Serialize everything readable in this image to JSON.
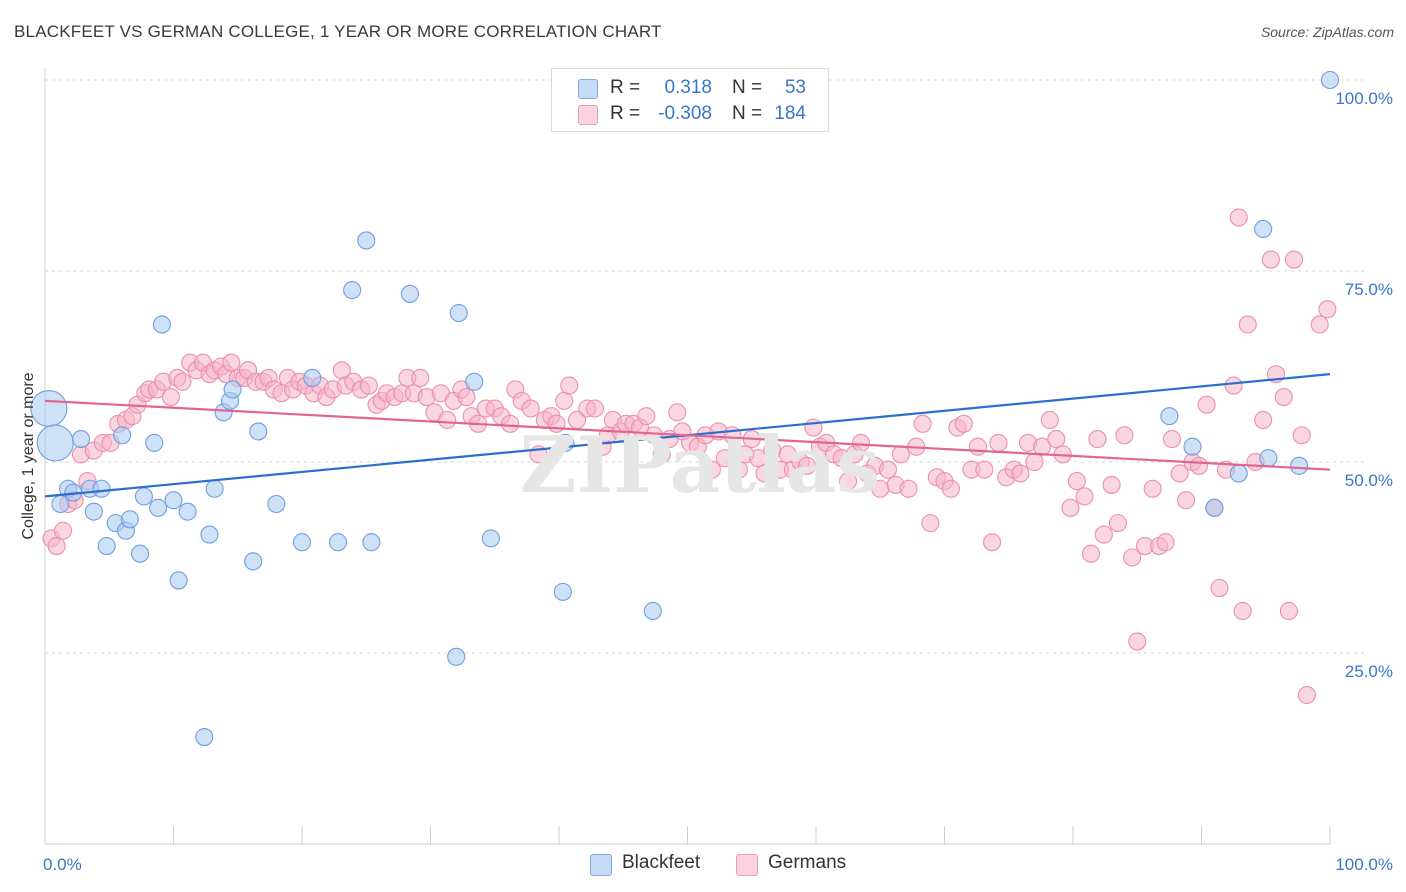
{
  "title": "BLACKFEET VS GERMAN COLLEGE, 1 YEAR OR MORE CORRELATION CHART",
  "source": "Source: ZipAtlas.com",
  "legend": {
    "rows": [
      {
        "r_label": "R =",
        "r_value": "0.318",
        "n_label": "N =",
        "n_value": "53",
        "color": "#a8c8f0"
      },
      {
        "r_label": "R =",
        "r_value": "-0.308",
        "n_label": "N =",
        "n_value": "184",
        "color": "#f5b4c8"
      }
    ]
  },
  "bottom_legend": [
    {
      "label": "Blackfeet",
      "color": "#a8c8f0"
    },
    {
      "label": "Germans",
      "color": "#f5b4c8"
    }
  ],
  "chart_data": {
    "type": "scatter",
    "title": "BLACKFEET VS GERMAN COLLEGE, 1 YEAR OR MORE CORRELATION CHART",
    "xlabel": "",
    "ylabel": "College, 1 year or more",
    "xlim": [
      0,
      100
    ],
    "ylim": [
      0,
      100
    ],
    "x_tick_labels": [
      "0.0%",
      "100.0%"
    ],
    "y_tick_labels": [
      {
        "label": "25.0%",
        "value": 25
      },
      {
        "label": "50.0%",
        "value": 50
      },
      {
        "label": "75.0%",
        "value": 75
      },
      {
        "label": "100.0%",
        "value": 100
      }
    ],
    "grid": "horizontal dashed",
    "series": [
      {
        "name": "Blackfeet",
        "color": "#a8c8f0",
        "stroke": "#6f9fdf",
        "trend": {
          "x": [
            0,
            100
          ],
          "y": [
            45.5,
            61.5
          ],
          "color": "#2a6fd0"
        },
        "points": [
          [
            0.3,
            57
          ],
          [
            0.8,
            52.5
          ],
          [
            1.2,
            44.5
          ],
          [
            1.8,
            46.5
          ],
          [
            2.2,
            46
          ],
          [
            2.8,
            53
          ],
          [
            3.5,
            46.5
          ],
          [
            3.8,
            43.5
          ],
          [
            4.4,
            46.5
          ],
          [
            4.8,
            39
          ],
          [
            5.5,
            42
          ],
          [
            6.0,
            53.5
          ],
          [
            6.3,
            41
          ],
          [
            6.6,
            42.5
          ],
          [
            7.4,
            38
          ],
          [
            7.7,
            45.5
          ],
          [
            8.5,
            52.5
          ],
          [
            8.8,
            44
          ],
          [
            9.1,
            68
          ],
          [
            10.0,
            45
          ],
          [
            10.4,
            34.5
          ],
          [
            11.1,
            43.5
          ],
          [
            12.4,
            14
          ],
          [
            12.8,
            40.5
          ],
          [
            13.2,
            46.5
          ],
          [
            13.9,
            56.5
          ],
          [
            14.4,
            58
          ],
          [
            14.6,
            59.5
          ],
          [
            16.2,
            37
          ],
          [
            16.6,
            54
          ],
          [
            18.0,
            44.5
          ],
          [
            20.0,
            39.5
          ],
          [
            20.8,
            61
          ],
          [
            22.8,
            39.5
          ],
          [
            23.9,
            72.5
          ],
          [
            25.0,
            79
          ],
          [
            25.4,
            39.5
          ],
          [
            28.4,
            72
          ],
          [
            32.0,
            24.5
          ],
          [
            32.2,
            69.5
          ],
          [
            33.4,
            60.5
          ],
          [
            34.7,
            40
          ],
          [
            40.3,
            33
          ],
          [
            40.5,
            52.5
          ],
          [
            47.3,
            30.5
          ],
          [
            87.5,
            56
          ],
          [
            89.3,
            52
          ],
          [
            91.0,
            44
          ],
          [
            92.9,
            48.5
          ],
          [
            94.8,
            80.5
          ],
          [
            95.2,
            50.5
          ],
          [
            97.6,
            49.5
          ],
          [
            100,
            100
          ]
        ]
      },
      {
        "name": "Germans",
        "color": "#f5b4c8",
        "stroke": "#ec8fae",
        "trend": {
          "x": [
            0,
            100
          ],
          "y": [
            58,
            49
          ],
          "color": "#e06591"
        },
        "points": [
          [
            0.5,
            40
          ],
          [
            0.9,
            39
          ],
          [
            1.4,
            41
          ],
          [
            1.8,
            44.5
          ],
          [
            2.3,
            45
          ],
          [
            2.8,
            51
          ],
          [
            3.3,
            47.5
          ],
          [
            3.8,
            51.5
          ],
          [
            4.5,
            52.5
          ],
          [
            5.1,
            52.5
          ],
          [
            5.7,
            55
          ],
          [
            6.3,
            55.5
          ],
          [
            6.8,
            56
          ],
          [
            7.2,
            57.5
          ],
          [
            7.8,
            59
          ],
          [
            8.1,
            59.5
          ],
          [
            8.7,
            59.5
          ],
          [
            9.2,
            60.5
          ],
          [
            9.8,
            58.5
          ],
          [
            10.3,
            61
          ],
          [
            10.7,
            60.5
          ],
          [
            11.3,
            63
          ],
          [
            11.8,
            62
          ],
          [
            12.3,
            63
          ],
          [
            12.8,
            61.5
          ],
          [
            13.2,
            62
          ],
          [
            13.7,
            62.5
          ],
          [
            14.1,
            61.5
          ],
          [
            14.5,
            63
          ],
          [
            15.0,
            61
          ],
          [
            15.5,
            61
          ],
          [
            15.8,
            62
          ],
          [
            16.4,
            60.5
          ],
          [
            17.0,
            60.5
          ],
          [
            17.4,
            61
          ],
          [
            17.8,
            59.5
          ],
          [
            18.4,
            59
          ],
          [
            18.9,
            61
          ],
          [
            19.3,
            59.5
          ],
          [
            19.8,
            60.5
          ],
          [
            20.3,
            60
          ],
          [
            20.9,
            59
          ],
          [
            21.4,
            60
          ],
          [
            21.9,
            58.5
          ],
          [
            22.4,
            59.5
          ],
          [
            23.1,
            62
          ],
          [
            23.4,
            60
          ],
          [
            24.0,
            60.5
          ],
          [
            24.6,
            59.5
          ],
          [
            25.2,
            60
          ],
          [
            25.8,
            57.5
          ],
          [
            26.2,
            58
          ],
          [
            26.6,
            59
          ],
          [
            27.2,
            58.5
          ],
          [
            27.8,
            59
          ],
          [
            28.2,
            61
          ],
          [
            28.7,
            59
          ],
          [
            29.2,
            61
          ],
          [
            29.7,
            58.5
          ],
          [
            30.3,
            56.5
          ],
          [
            30.8,
            59
          ],
          [
            31.3,
            55.5
          ],
          [
            31.8,
            58
          ],
          [
            32.4,
            59.5
          ],
          [
            32.8,
            58.5
          ],
          [
            33.2,
            56
          ],
          [
            33.7,
            55
          ],
          [
            34.3,
            57
          ],
          [
            35.0,
            57
          ],
          [
            35.5,
            56
          ],
          [
            36.2,
            55
          ],
          [
            36.6,
            59.5
          ],
          [
            37.1,
            58
          ],
          [
            37.8,
            57
          ],
          [
            38.4,
            51
          ],
          [
            38.9,
            55.5
          ],
          [
            39.4,
            56
          ],
          [
            39.8,
            55
          ],
          [
            40.4,
            58
          ],
          [
            40.8,
            60
          ],
          [
            41.4,
            55.5
          ],
          [
            42.2,
            57
          ],
          [
            42.8,
            57
          ],
          [
            43.4,
            52
          ],
          [
            43.8,
            53.5
          ],
          [
            44.2,
            55.5
          ],
          [
            44.8,
            54
          ],
          [
            45.2,
            55
          ],
          [
            45.8,
            55
          ],
          [
            46.3,
            54.5
          ],
          [
            46.8,
            56
          ],
          [
            47.4,
            53.5
          ],
          [
            48.0,
            51
          ],
          [
            48.6,
            53
          ],
          [
            49.2,
            56.5
          ],
          [
            49.6,
            54
          ],
          [
            50.2,
            52.5
          ],
          [
            50.8,
            52
          ],
          [
            51.4,
            53.5
          ],
          [
            51.9,
            49
          ],
          [
            52.4,
            54
          ],
          [
            52.9,
            50.5
          ],
          [
            53.5,
            53.5
          ],
          [
            54.0,
            49
          ],
          [
            54.5,
            51
          ],
          [
            55.0,
            53
          ],
          [
            55.5,
            50.5
          ],
          [
            56.0,
            48.5
          ],
          [
            56.6,
            51.5
          ],
          [
            57.2,
            49
          ],
          [
            57.8,
            51
          ],
          [
            58.2,
            49
          ],
          [
            58.8,
            50
          ],
          [
            59.3,
            49.5
          ],
          [
            59.8,
            54.5
          ],
          [
            60.3,
            52
          ],
          [
            60.8,
            52.5
          ],
          [
            61.4,
            51
          ],
          [
            62.0,
            50.5
          ],
          [
            62.5,
            47.5
          ],
          [
            63.0,
            51
          ],
          [
            63.5,
            52.5
          ],
          [
            64.0,
            48.5
          ],
          [
            64.6,
            49.5
          ],
          [
            65.0,
            46.5
          ],
          [
            65.6,
            49
          ],
          [
            66.2,
            47
          ],
          [
            66.6,
            51
          ],
          [
            67.2,
            46.5
          ],
          [
            67.8,
            52
          ],
          [
            68.3,
            55
          ],
          [
            68.9,
            42
          ],
          [
            69.4,
            48
          ],
          [
            70.0,
            47.5
          ],
          [
            70.5,
            46.5
          ],
          [
            71.0,
            54.5
          ],
          [
            71.5,
            55
          ],
          [
            72.1,
            49
          ],
          [
            72.6,
            52
          ],
          [
            73.1,
            49
          ],
          [
            73.7,
            39.5
          ],
          [
            74.2,
            52.5
          ],
          [
            74.8,
            48
          ],
          [
            75.4,
            49
          ],
          [
            75.9,
            48.5
          ],
          [
            76.5,
            52.5
          ],
          [
            77.0,
            50
          ],
          [
            77.6,
            52
          ],
          [
            78.2,
            55.5
          ],
          [
            78.7,
            53
          ],
          [
            79.2,
            51
          ],
          [
            79.8,
            44
          ],
          [
            80.3,
            47.5
          ],
          [
            80.9,
            45.5
          ],
          [
            81.4,
            38
          ],
          [
            81.9,
            53
          ],
          [
            82.4,
            40.5
          ],
          [
            83.0,
            47
          ],
          [
            83.5,
            42
          ],
          [
            84.0,
            53.5
          ],
          [
            84.6,
            37.5
          ],
          [
            85.0,
            26.5
          ],
          [
            85.6,
            39
          ],
          [
            86.2,
            46.5
          ],
          [
            86.7,
            39
          ],
          [
            87.2,
            39.5
          ],
          [
            87.7,
            53
          ],
          [
            88.3,
            48.5
          ],
          [
            88.8,
            45
          ],
          [
            89.3,
            50
          ],
          [
            89.8,
            49.5
          ],
          [
            90.4,
            57.5
          ],
          [
            91.0,
            44
          ],
          [
            91.4,
            33.5
          ],
          [
            91.9,
            49
          ],
          [
            92.5,
            60
          ],
          [
            92.9,
            82
          ],
          [
            93.2,
            30.5
          ],
          [
            93.6,
            68
          ],
          [
            94.2,
            50
          ],
          [
            94.8,
            55.5
          ],
          [
            95.4,
            76.5
          ],
          [
            95.8,
            61.5
          ],
          [
            96.4,
            58.5
          ],
          [
            96.8,
            30.5
          ],
          [
            97.2,
            76.5
          ],
          [
            97.8,
            53.5
          ],
          [
            98.2,
            19.5
          ],
          [
            99.2,
            68
          ],
          [
            99.8,
            70
          ]
        ]
      }
    ]
  }
}
